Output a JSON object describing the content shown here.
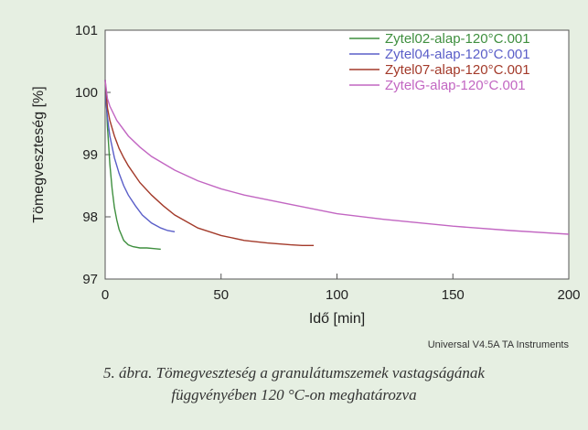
{
  "chart_data": {
    "type": "line",
    "xlabel": "Idő [min]",
    "ylabel": "Tömegveszteség [%]",
    "xlim": [
      0,
      200
    ],
    "ylim": [
      97,
      101
    ],
    "x_ticks": [
      "0",
      "50",
      "100",
      "150",
      "200"
    ],
    "y_ticks": [
      "97",
      "98",
      "99",
      "100",
      "101"
    ],
    "grid": false,
    "legend_position": "top-right",
    "source_note": "Universal V4.5A TA Instruments",
    "series": [
      {
        "name": "Zytel02-alap-120°C.001",
        "color": "#3f8f3f",
        "x": [
          0,
          0.5,
          1,
          2,
          3,
          4,
          5,
          6,
          8,
          10,
          12,
          15,
          18,
          21,
          24
        ],
        "y": [
          100.2,
          99.85,
          99.45,
          98.85,
          98.45,
          98.15,
          97.95,
          97.8,
          97.62,
          97.55,
          97.52,
          97.5,
          97.5,
          97.49,
          97.48
        ]
      },
      {
        "name": "Zytel04-alap-120°C.001",
        "color": "#5a5ec8",
        "x": [
          0,
          0.5,
          1,
          2,
          4,
          6,
          8,
          10,
          13,
          16,
          20,
          24,
          27,
          30
        ],
        "y": [
          100.2,
          99.8,
          99.6,
          99.3,
          98.95,
          98.7,
          98.5,
          98.35,
          98.18,
          98.03,
          97.9,
          97.82,
          97.78,
          97.76
        ]
      },
      {
        "name": "Zytel07-alap-120°C.001",
        "color": "#a33a2a",
        "x": [
          0,
          1,
          2,
          4,
          6,
          8,
          10,
          15,
          20,
          25,
          30,
          40,
          50,
          60,
          70,
          80,
          85,
          90
        ],
        "y": [
          100.2,
          99.75,
          99.55,
          99.3,
          99.1,
          98.95,
          98.82,
          98.55,
          98.35,
          98.18,
          98.03,
          97.82,
          97.7,
          97.62,
          97.58,
          97.55,
          97.54,
          97.54
        ]
      },
      {
        "name": "ZytelG-alap-120°C.001",
        "color": "#c266c2",
        "x": [
          0,
          1,
          2,
          5,
          10,
          15,
          20,
          30,
          40,
          50,
          60,
          80,
          100,
          120,
          150,
          175,
          200
        ],
        "y": [
          100.2,
          99.9,
          99.78,
          99.55,
          99.3,
          99.12,
          98.97,
          98.75,
          98.58,
          98.45,
          98.35,
          98.2,
          98.05,
          97.96,
          97.85,
          97.78,
          97.72
        ]
      }
    ]
  },
  "caption": {
    "line1": "5. ábra. Tömegveszteség a granulátumszemek vastagságának",
    "line2": "függvényében 120 °C-on meghatározva"
  }
}
